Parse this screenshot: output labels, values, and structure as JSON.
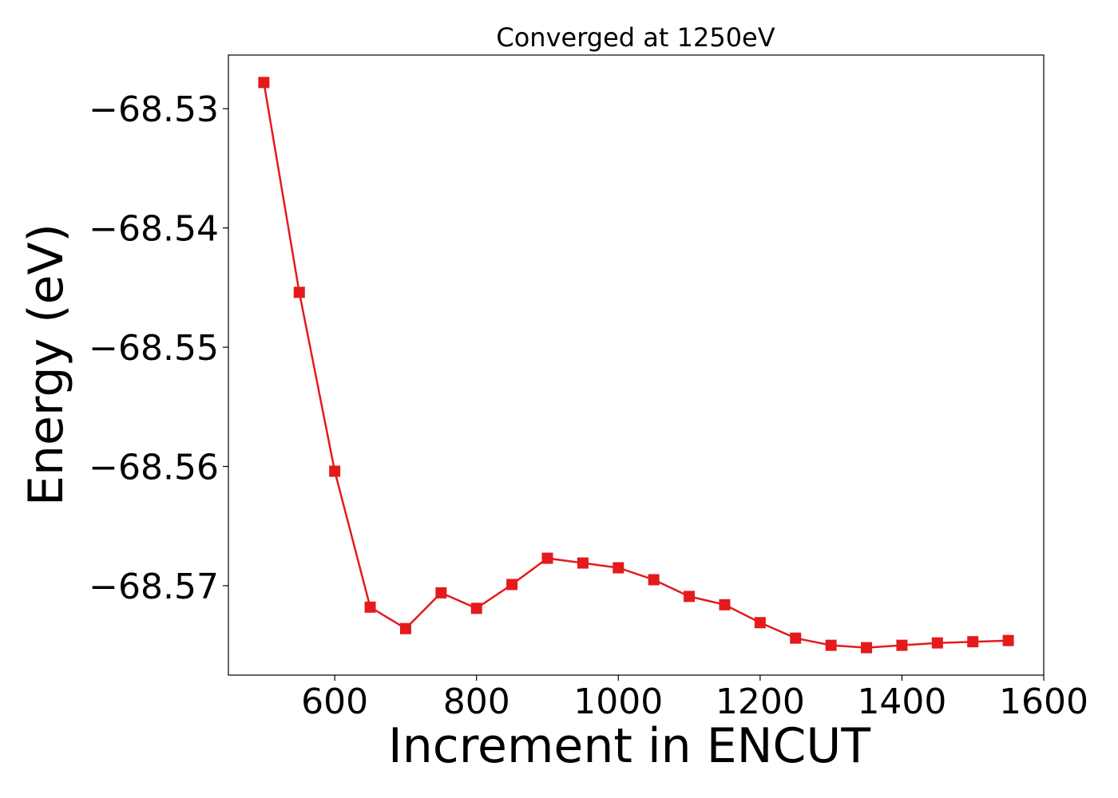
{
  "chart_data": {
    "type": "line",
    "title": "Converged at 1250eV",
    "xlabel": "Increment in ENCUT",
    "ylabel": "Energy (eV)",
    "xlim": [
      450,
      1600
    ],
    "ylim": [
      -68.5775,
      -68.5255
    ],
    "xticks": [
      600,
      800,
      1000,
      1200,
      1400,
      1600
    ],
    "xtick_labels": [
      "600",
      "800",
      "1000",
      "1200",
      "1400",
      "1600"
    ],
    "yticks": [
      -68.53,
      -68.54,
      -68.55,
      -68.56,
      -68.57
    ],
    "ytick_labels": [
      "−68.53",
      "−68.54",
      "−68.55",
      "−68.56",
      "−68.57"
    ],
    "grid": false,
    "marker": "square",
    "color": "#e41a1c",
    "series": [
      {
        "x": [
          500,
          550,
          600,
          650,
          700,
          750,
          800,
          850,
          900,
          950,
          1000,
          1050,
          1100,
          1150,
          1200,
          1250,
          1300,
          1350,
          1400,
          1450,
          1500,
          1550
        ],
        "y": [
          -68.5278,
          -68.5454,
          -68.5604,
          -68.5718,
          -68.5736,
          -68.5706,
          -68.5719,
          -68.5699,
          -68.5677,
          -68.5681,
          -68.5685,
          -68.5695,
          -68.5709,
          -68.5716,
          -68.5731,
          -68.5744,
          -68.575,
          -68.5752,
          -68.575,
          -68.5748,
          -68.5747,
          -68.5746
        ]
      }
    ]
  }
}
